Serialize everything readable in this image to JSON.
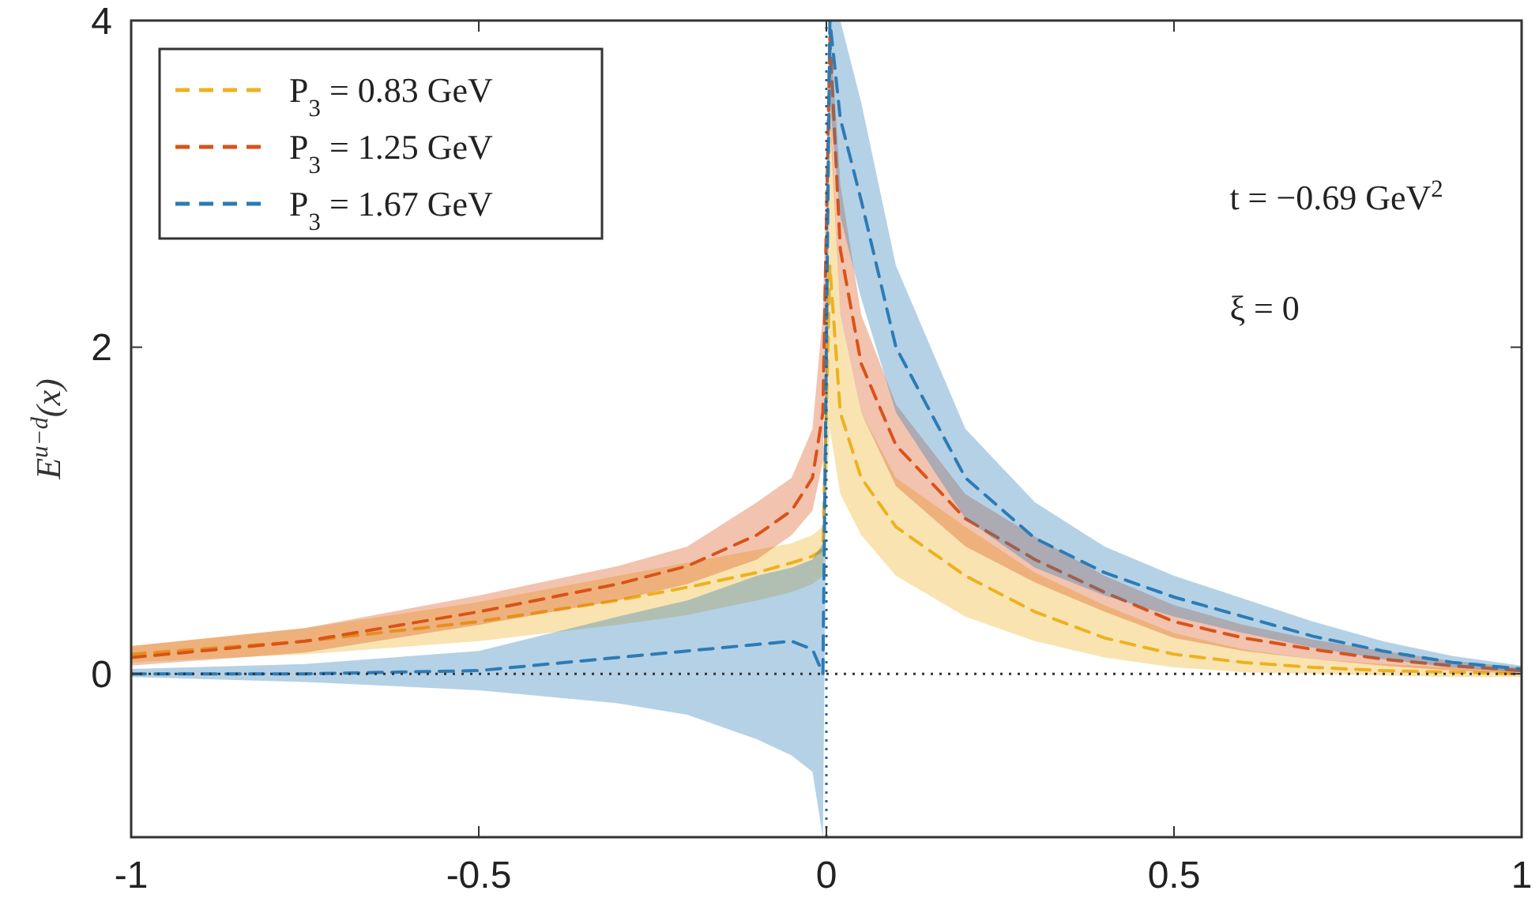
{
  "chart_data": {
    "type": "line",
    "ylabel": "E$^{u−d}$(x)",
    "xlim": [
      -1,
      1
    ],
    "ylim": [
      -1,
      4
    ],
    "xticks": [
      -1,
      -0.5,
      0,
      0.5,
      1
    ],
    "yticks": [
      0,
      2,
      4
    ],
    "legend": "top left",
    "line_style": "dashed",
    "grid": false,
    "x": [
      -1,
      -0.75,
      -0.5,
      -0.3,
      -0.2,
      -0.1,
      -0.05,
      -0.02,
      -0.005,
      0.005,
      0.02,
      0.05,
      0.1,
      0.2,
      0.3,
      0.4,
      0.5,
      0.6,
      0.7,
      0.8,
      0.9,
      1
    ],
    "series": [
      {
        "name": "P$_{3}$ = 0.83 GeV",
        "color": "#edb120",
        "values": [
          0.12,
          0.2,
          0.32,
          0.45,
          0.53,
          0.62,
          0.68,
          0.72,
          0.76,
          2.5,
          1.6,
          1.2,
          0.9,
          0.6,
          0.38,
          0.22,
          0.12,
          0.07,
          0.04,
          0.02,
          0.01,
          0
        ],
        "lower": [
          0.07,
          0.12,
          0.2,
          0.3,
          0.36,
          0.45,
          0.5,
          0.55,
          0.6,
          1.5,
          1.1,
          0.85,
          0.6,
          0.35,
          0.2,
          0.1,
          0.04,
          0.01,
          0,
          -0.01,
          -0.02,
          -0.02
        ],
        "upper": [
          0.17,
          0.28,
          0.44,
          0.6,
          0.68,
          0.76,
          0.8,
          0.85,
          0.9,
          3.5,
          2.2,
          1.6,
          1.2,
          0.9,
          0.62,
          0.42,
          0.25,
          0.15,
          0.09,
          0.06,
          0.04,
          0.03
        ]
      },
      {
        "name": "P$_{3}$ = 1.25 GeV",
        "color": "#d95319",
        "values": [
          0.1,
          0.2,
          0.38,
          0.55,
          0.66,
          0.85,
          1.0,
          1.2,
          1.6,
          3.9,
          2.6,
          1.9,
          1.4,
          0.95,
          0.7,
          0.5,
          0.32,
          0.22,
          0.15,
          0.09,
          0.05,
          0.02
        ],
        "lower": [
          0.05,
          0.13,
          0.3,
          0.45,
          0.55,
          0.7,
          0.85,
          1.0,
          1.3,
          3.4,
          2.2,
          1.6,
          1.15,
          0.78,
          0.56,
          0.38,
          0.22,
          0.14,
          0.09,
          0.05,
          0.02,
          0
        ],
        "upper": [
          0.17,
          0.28,
          0.48,
          0.66,
          0.78,
          1.05,
          1.2,
          1.5,
          2.2,
          4,
          3.0,
          2.2,
          1.65,
          1.1,
          0.84,
          0.6,
          0.42,
          0.3,
          0.21,
          0.14,
          0.08,
          0.04
        ]
      },
      {
        "name": "P$_{3}$ = 1.67 GeV",
        "color": "#2c7bb6",
        "values": [
          0.0,
          0.0,
          0.02,
          0.1,
          0.14,
          0.18,
          0.2,
          0.15,
          0.0,
          4,
          3.4,
          2.9,
          2.0,
          1.2,
          0.83,
          0.62,
          0.47,
          0.35,
          0.23,
          0.14,
          0.07,
          0.03
        ],
        "lower": [
          -0.02,
          -0.05,
          -0.1,
          -0.18,
          -0.25,
          -0.4,
          -0.5,
          -0.6,
          -1,
          3.5,
          2.8,
          2.3,
          1.6,
          0.95,
          0.65,
          0.48,
          0.35,
          0.25,
          0.16,
          0.09,
          0.04,
          0.01
        ],
        "upper": [
          0.03,
          0.06,
          0.14,
          0.35,
          0.45,
          0.6,
          0.65,
          0.7,
          0.8,
          4,
          4,
          3.5,
          2.5,
          1.5,
          1.05,
          0.78,
          0.6,
          0.46,
          0.32,
          0.2,
          0.11,
          0.05
        ]
      }
    ],
    "ref_lines": [
      {
        "axis": "y",
        "value": 0,
        "line_style": "dotted",
        "color": "#333333"
      },
      {
        "axis": "x",
        "value": 0,
        "line_style": "dotted",
        "color": "#2c5f8a"
      }
    ],
    "annotations": [
      "t = −0.69 GeV$^{2}$",
      "ξ = 0"
    ]
  }
}
